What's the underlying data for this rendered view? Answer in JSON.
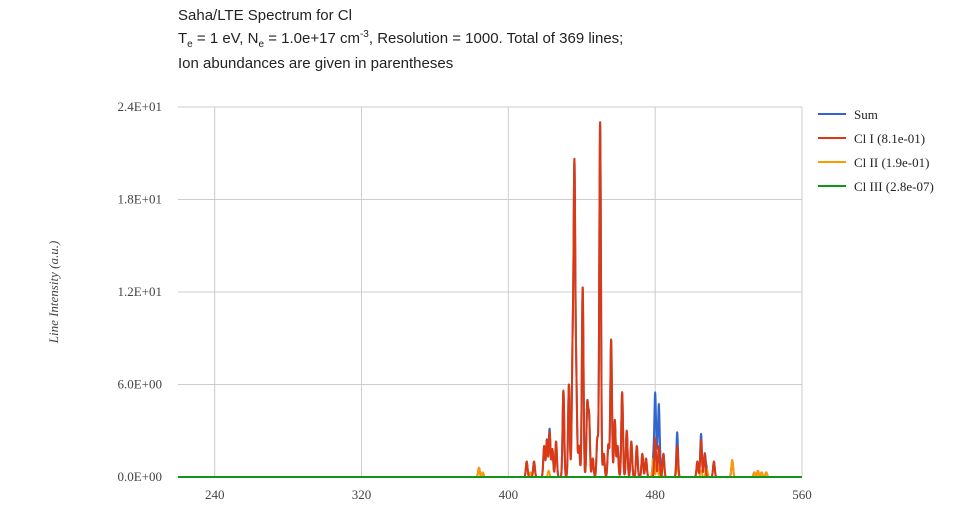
{
  "title": {
    "line1": "Saha/LTE Spectrum for Cl",
    "te_label": "T",
    "te_sub": "e",
    "te_value": " = 1 eV, N",
    "ne_sub": "e",
    "ne_value": " = 1.0e+17 cm",
    "ne_sup": "-3",
    "line2_rest": ", Resolution = 1000. Total of 369 lines;",
    "line3": "Ion abundances are given in parentheses"
  },
  "chart_data": {
    "type": "line",
    "title": "Saha/LTE Spectrum for Cl",
    "xlabel": "",
    "ylabel": "Line Intensity (a.u.)",
    "xlim": [
      220,
      560
    ],
    "ylim": [
      0,
      24
    ],
    "x_ticks": [
      240,
      320,
      400,
      480,
      560
    ],
    "x_tick_labels": [
      "240",
      "320",
      "400",
      "480",
      "560"
    ],
    "y_ticks": [
      0,
      6,
      12,
      18,
      24
    ],
    "y_tick_labels": [
      "0.0E+00",
      "6.0E+00",
      "1.2E+01",
      "1.8E+01",
      "2.4E+01"
    ],
    "grid": true,
    "legend_position": "right",
    "series": [
      {
        "name": "Sum",
        "color": "#3366cc",
        "peaks": [
          [
            480.0,
            2.8
          ],
          [
            482.0,
            2.6
          ]
        ]
      },
      {
        "name": "Cl I (8.1e-01)",
        "color": "#dc3912",
        "peaks": [
          [
            410.0,
            1.0
          ],
          [
            414.0,
            1.0
          ],
          [
            419.5,
            2.0
          ],
          [
            421.0,
            2.4
          ],
          [
            422.5,
            2.9
          ],
          [
            424.0,
            1.8
          ],
          [
            426.0,
            2.3
          ],
          [
            430.0,
            5.6
          ],
          [
            433.0,
            6.0
          ],
          [
            435.0,
            7.6
          ],
          [
            436.0,
            19.5
          ],
          [
            437.0,
            5.8
          ],
          [
            438.5,
            2.0
          ],
          [
            440.5,
            12.3
          ],
          [
            443.0,
            4.6
          ],
          [
            444.0,
            3.8
          ],
          [
            446.0,
            1.2
          ],
          [
            448.5,
            2.5
          ],
          [
            450.0,
            23.0
          ],
          [
            452.0,
            1.5
          ],
          [
            454.5,
            2.1
          ],
          [
            456.0,
            8.9
          ],
          [
            458.0,
            3.7
          ],
          [
            459.5,
            2.0
          ],
          [
            462.0,
            5.5
          ],
          [
            464.5,
            3.0
          ],
          [
            467.0,
            2.3
          ],
          [
            470.0,
            2.0
          ],
          [
            473.0,
            1.5
          ],
          [
            475.0,
            1.2
          ],
          [
            480.0,
            2.5
          ],
          [
            482.0,
            2.0
          ],
          [
            484.5,
            1.5
          ],
          [
            492.0,
            2.0
          ],
          [
            503.0,
            1.0
          ],
          [
            505.0,
            2.4
          ],
          [
            507.0,
            1.5
          ],
          [
            512.0,
            1.0
          ]
        ]
      },
      {
        "name": "Cl II (1.9e-01)",
        "color": "#ff9900",
        "peaks": [
          [
            384.0,
            0.6
          ],
          [
            386.0,
            0.3
          ],
          [
            412.0,
            0.3
          ],
          [
            422.0,
            0.4
          ],
          [
            479.0,
            1.2
          ],
          [
            481.0,
            1.0
          ],
          [
            483.0,
            0.6
          ],
          [
            492.0,
            0.9
          ],
          [
            505.0,
            0.4
          ],
          [
            508.0,
            0.6
          ],
          [
            522.0,
            1.1
          ],
          [
            534.0,
            0.3
          ],
          [
            536.0,
            0.4
          ],
          [
            538.0,
            0.3
          ],
          [
            540.5,
            0.3
          ]
        ]
      },
      {
        "name": "Cl III (2.8e-07)",
        "color": "#109618",
        "peaks": []
      }
    ]
  }
}
